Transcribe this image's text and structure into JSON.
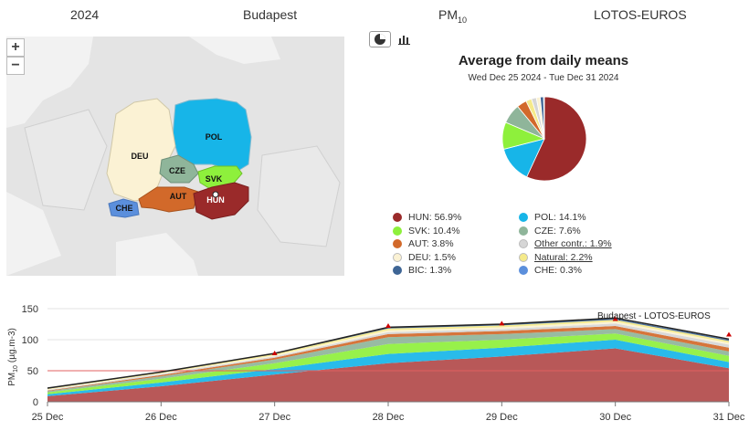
{
  "header": {
    "year": "2024",
    "city": "Budapest",
    "pollutant_main": "PM",
    "pollutant_sub": "10",
    "model": "LOTOS-EUROS"
  },
  "map": {
    "zoom_in": "+",
    "zoom_out": "−",
    "regions": [
      {
        "code": "POL",
        "color": "#17b5e8"
      },
      {
        "code": "DEU",
        "color": "#fbf2d4"
      },
      {
        "code": "CZE",
        "color": "#8fb59a"
      },
      {
        "code": "SVK",
        "color": "#8ef03c"
      },
      {
        "code": "AUT",
        "color": "#d2692a"
      },
      {
        "code": "HUN",
        "color": "#9a2a2a"
      },
      {
        "code": "CHE",
        "color": "#5b8fdc"
      }
    ]
  },
  "pie": {
    "title": "Average from daily means",
    "subtitle": "Wed Dec 25 2024 - Tue Dec 31 2024",
    "legend": [
      {
        "label": "HUN: 56.9%",
        "color": "#9a2a2a",
        "link": false
      },
      {
        "label": "POL: 14.1%",
        "color": "#17b5e8",
        "link": false
      },
      {
        "label": "SVK: 10.4%",
        "color": "#8ef03c",
        "link": false
      },
      {
        "label": "CZE: 7.6%",
        "color": "#8fb59a",
        "link": false
      },
      {
        "label": "AUT: 3.8%",
        "color": "#d2692a",
        "link": false
      },
      {
        "label": "Other contr.: 1.9%",
        "color": "#d6d6d6",
        "link": true
      },
      {
        "label": "DEU: 1.5%",
        "color": "#fbf2d4",
        "link": false
      },
      {
        "label": "Natural: 2.2%",
        "color": "#f5ea8a",
        "link": true
      },
      {
        "label": "BIC: 1.3%",
        "color": "#3e6595",
        "link": false
      },
      {
        "label": "CHE: 0.3%",
        "color": "#5b8fdc",
        "link": false
      }
    ]
  },
  "chart_data": [
    {
      "type": "pie",
      "title": "Average from daily means",
      "subtitle": "Wed Dec 25 2024 - Tue Dec 31 2024",
      "slices": [
        {
          "label": "HUN",
          "value": 56.9,
          "color": "#9a2a2a"
        },
        {
          "label": "POL",
          "value": 14.1,
          "color": "#17b5e8"
        },
        {
          "label": "SVK",
          "value": 10.4,
          "color": "#8ef03c"
        },
        {
          "label": "CZE",
          "value": 7.6,
          "color": "#8fb59a"
        },
        {
          "label": "AUT",
          "value": 3.8,
          "color": "#d2692a"
        },
        {
          "label": "Natural",
          "value": 2.2,
          "color": "#f5ea8a"
        },
        {
          "label": "Other contr.",
          "value": 1.9,
          "color": "#d6d6d6"
        },
        {
          "label": "DEU",
          "value": 1.5,
          "color": "#fbf2d4"
        },
        {
          "label": "BIC",
          "value": 1.3,
          "color": "#3e6595"
        },
        {
          "label": "CHE",
          "value": 0.3,
          "color": "#5b8fdc"
        }
      ]
    },
    {
      "type": "area",
      "stacked": true,
      "ylabel_main": "PM",
      "ylabel_sub": "10",
      "ylabel_unit": "(µg.m-3)",
      "annotation": "Budapest - LOTOS-EUROS",
      "ylim": [
        0,
        150
      ],
      "yticks": [
        0,
        50,
        100,
        150
      ],
      "threshold": 50,
      "grid": true,
      "categories": [
        "25 Dec",
        "26 Dec",
        "27 Dec",
        "28 Dec",
        "29 Dec",
        "30 Dec",
        "31 Dec"
      ],
      "series": [
        {
          "name": "HUN",
          "color": "#b24a4a",
          "values": [
            9,
            25,
            44,
            62,
            73,
            86,
            54
          ]
        },
        {
          "name": "POL",
          "color": "#17b5e8",
          "values": [
            3,
            6,
            9,
            15,
            14,
            14,
            10
          ]
        },
        {
          "name": "SVK",
          "color": "#8ef03c",
          "values": [
            3,
            6,
            9,
            16,
            13,
            10,
            10
          ]
        },
        {
          "name": "CZE",
          "color": "#8fb59a",
          "values": [
            2,
            4,
            6,
            11,
            9,
            7,
            7
          ]
        },
        {
          "name": "AUT",
          "color": "#d2692a",
          "values": [
            1,
            2,
            3,
            5,
            5,
            5,
            6
          ]
        },
        {
          "name": "Other contr.",
          "color": "#d6d6d6",
          "values": [
            1,
            2,
            2,
            3,
            3,
            4,
            5
          ]
        },
        {
          "name": "DEU",
          "color": "#fbf2d4",
          "values": [
            1,
            1,
            2,
            3,
            3,
            3,
            3
          ]
        },
        {
          "name": "Natural",
          "color": "#f5ea8a",
          "values": [
            1,
            1,
            2,
            3,
            3,
            3,
            3
          ]
        },
        {
          "name": "BIC",
          "color": "#3e6595",
          "values": [
            1,
            1,
            1,
            2,
            2,
            2,
            2
          ]
        }
      ],
      "total_line": {
        "color": "#222222",
        "values": [
          22,
          48,
          78,
          120,
          125,
          135,
          101
        ]
      },
      "observed_markers": {
        "color": "#cc0000",
        "values": [
          null,
          null,
          78,
          122,
          126,
          133,
          108
        ]
      }
    }
  ]
}
